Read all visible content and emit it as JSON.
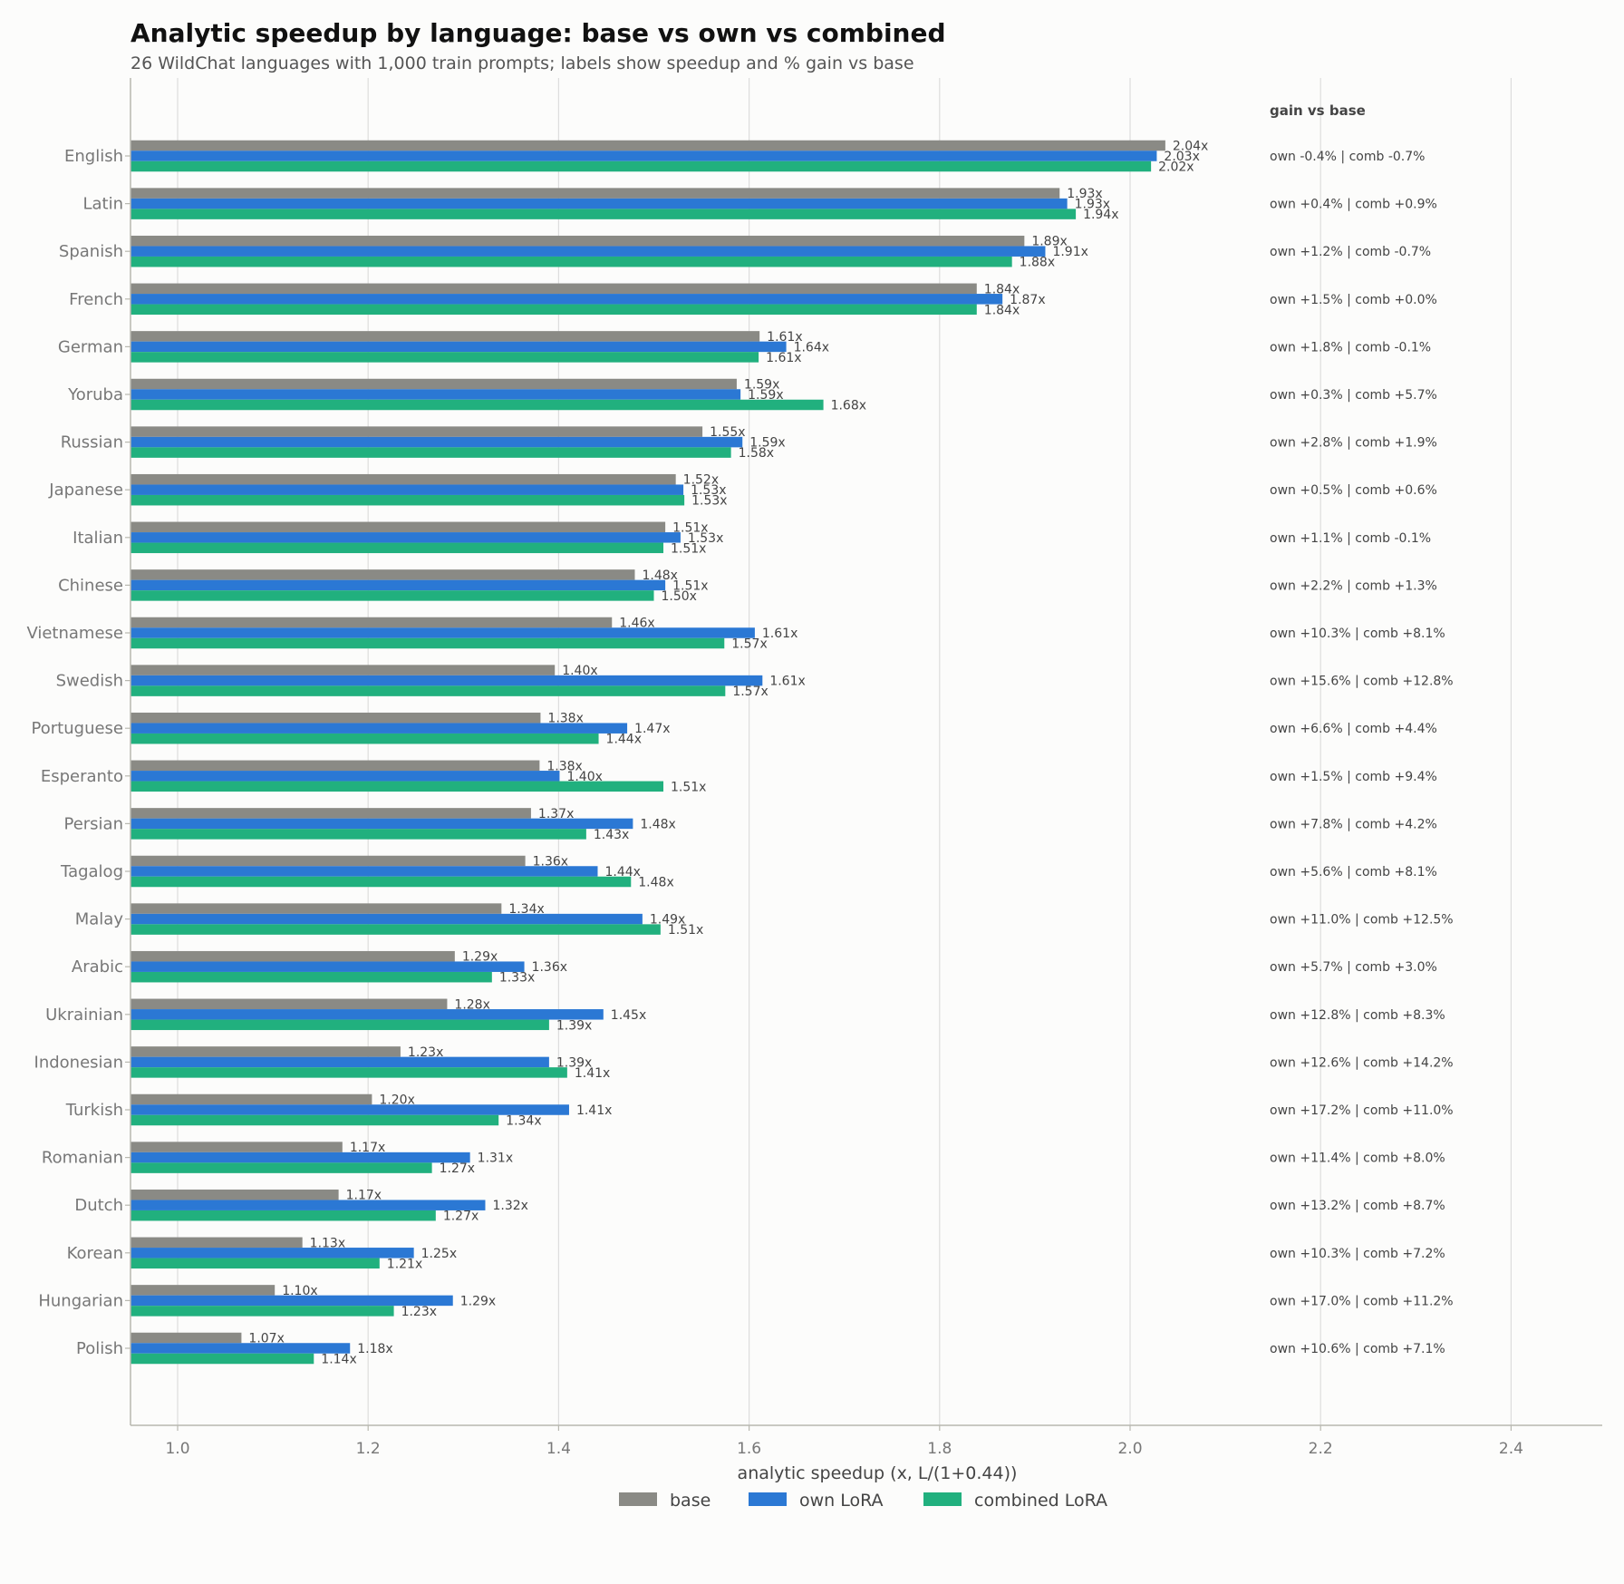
{
  "title": "Analytic speedup by language: base vs own vs combined",
  "subtitle": "26 WildChat languages with 1,000 train prompts; labels show speedup and % gain vs base",
  "colors": {
    "base": "#8a8a85",
    "own": "#2b78d4",
    "combined": "#21b07e",
    "grid": "#dddddd",
    "axis": "#b8b8b0"
  },
  "chart_data": {
    "type": "bar",
    "orientation": "horizontal",
    "title": "Analytic speedup by language: base vs own vs combined",
    "subtitle": "26 WildChat languages with 1,000 train prompts; labels show speedup and % gain vs base",
    "xlabel": "analytic speedup (x, L/(1+0.44))",
    "ylabel": "",
    "xlim": [
      0.95,
      2.5
    ],
    "xticks": [
      "1.0",
      "1.2",
      "1.4",
      "1.6",
      "1.8",
      "2.0",
      "2.2",
      "2.4"
    ],
    "grid": "vertical",
    "legend_position": "bottom-center",
    "gain_header": "gain vs base",
    "categories": [
      "English",
      "Latin",
      "Spanish",
      "French",
      "German",
      "Yoruba",
      "Russian",
      "Japanese",
      "Italian",
      "Chinese",
      "Vietnamese",
      "Swedish",
      "Portuguese",
      "Esperanto",
      "Persian",
      "Tagalog",
      "Malay",
      "Arabic",
      "Ukrainian",
      "Indonesian",
      "Turkish",
      "Romanian",
      "Dutch",
      "Korean",
      "Hungarian",
      "Polish"
    ],
    "series": [
      {
        "name": "base",
        "values": [
          2.037,
          1.926,
          1.889,
          1.839,
          1.611,
          1.587,
          1.551,
          1.523,
          1.512,
          1.48,
          1.456,
          1.396,
          1.381,
          1.38,
          1.371,
          1.365,
          1.34,
          1.291,
          1.283,
          1.234,
          1.204,
          1.173,
          1.169,
          1.131,
          1.102,
          1.067
        ],
        "labels": [
          "2.04x",
          "1.93x",
          "1.89x",
          "1.84x",
          "1.61x",
          "1.59x",
          "1.55x",
          "1.52x",
          "1.51x",
          "1.48x",
          "1.46x",
          "1.40x",
          "1.38x",
          "1.38x",
          "1.37x",
          "1.36x",
          "1.34x",
          "1.29x",
          "1.28x",
          "1.23x",
          "1.20x",
          "1.17x",
          "1.17x",
          "1.13x",
          "1.10x",
          "1.07x"
        ]
      },
      {
        "name": "own LoRA",
        "values": [
          2.028,
          1.934,
          1.911,
          1.866,
          1.639,
          1.591,
          1.593,
          1.531,
          1.528,
          1.512,
          1.606,
          1.614,
          1.472,
          1.401,
          1.478,
          1.441,
          1.488,
          1.364,
          1.447,
          1.39,
          1.411,
          1.307,
          1.323,
          1.248,
          1.289,
          1.181
        ],
        "labels": [
          "2.03x",
          "1.93x",
          "1.91x",
          "1.87x",
          "1.64x",
          "1.59x",
          "1.59x",
          "1.53x",
          "1.53x",
          "1.51x",
          "1.61x",
          "1.61x",
          "1.47x",
          "1.40x",
          "1.48x",
          "1.44x",
          "1.49x",
          "1.36x",
          "1.45x",
          "1.39x",
          "1.41x",
          "1.31x",
          "1.32x",
          "1.25x",
          "1.29x",
          "1.18x"
        ]
      },
      {
        "name": "combined LoRA",
        "values": [
          2.022,
          1.943,
          1.876,
          1.839,
          1.61,
          1.678,
          1.581,
          1.532,
          1.51,
          1.5,
          1.574,
          1.575,
          1.442,
          1.51,
          1.429,
          1.476,
          1.507,
          1.33,
          1.39,
          1.409,
          1.337,
          1.267,
          1.271,
          1.212,
          1.227,
          1.143
        ],
        "labels": [
          "2.02x",
          "1.94x",
          "1.88x",
          "1.84x",
          "1.61x",
          "1.68x",
          "1.58x",
          "1.53x",
          "1.51x",
          "1.50x",
          "1.57x",
          "1.57x",
          "1.44x",
          "1.51x",
          "1.43x",
          "1.48x",
          "1.51x",
          "1.33x",
          "1.39x",
          "1.41x",
          "1.34x",
          "1.27x",
          "1.27x",
          "1.21x",
          "1.23x",
          "1.14x"
        ]
      }
    ],
    "gains": [
      "own -0.4%  |  comb -0.7%",
      "own +0.4%  |  comb +0.9%",
      "own +1.2%  |  comb -0.7%",
      "own +1.5%  |  comb +0.0%",
      "own +1.8%  |  comb -0.1%",
      "own +0.3%  |  comb +5.7%",
      "own +2.8%  |  comb +1.9%",
      "own +0.5%  |  comb +0.6%",
      "own +1.1%  |  comb -0.1%",
      "own +2.2%  |  comb +1.3%",
      "own +10.3%  |  comb +8.1%",
      "own +15.6%  |  comb +12.8%",
      "own +6.6%  |  comb +4.4%",
      "own +1.5%  |  comb +9.4%",
      "own +7.8%  |  comb +4.2%",
      "own +5.6%  |  comb +8.1%",
      "own +11.0%  |  comb +12.5%",
      "own +5.7%  |  comb +3.0%",
      "own +12.8%  |  comb +8.3%",
      "own +12.6%  |  comb +14.2%",
      "own +17.2%  |  comb +11.0%",
      "own +11.4%  |  comb +8.0%",
      "own +13.2%  |  comb +8.7%",
      "own +10.3%  |  comb +7.2%",
      "own +17.0%  |  comb +11.2%",
      "own +10.6%  |  comb +7.1%"
    ]
  }
}
